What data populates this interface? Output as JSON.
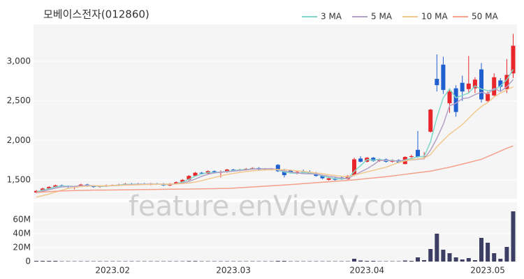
{
  "chart_data": [
    {
      "type": "candlestick",
      "title": "모베이스전자(012860)",
      "watermark": "feature.enViewV.com",
      "up_color": "#e8262b",
      "down_color": "#1f5fd0",
      "open": [
        1340,
        1360,
        1390,
        1410,
        1430,
        1420,
        1410,
        1420,
        1440,
        1420,
        1410,
        1420,
        1430,
        1435,
        1440,
        1450,
        1440,
        1450,
        1445,
        1450,
        1445,
        1430,
        1450,
        1470,
        1500,
        1550,
        1590,
        1580,
        1610,
        1590,
        1600,
        1630,
        1620,
        1630,
        1640,
        1650,
        1630,
        1640,
        1690,
        1610,
        1620,
        1590,
        1600,
        1600,
        1580,
        1550,
        1500,
        1520,
        1530,
        1510,
        1560,
        1770,
        1730,
        1780,
        1740,
        1760,
        1730,
        1750,
        1700,
        1790,
        1880,
        1790,
        2110,
        2780,
        2960,
        2470,
        2660,
        2730,
        2650,
        2660,
        2900,
        2500,
        2570,
        2760,
        2650,
        2850
      ],
      "high": [
        1370,
        1400,
        1420,
        1440,
        1440,
        1430,
        1420,
        1450,
        1450,
        1430,
        1430,
        1440,
        1440,
        1450,
        1460,
        1460,
        1460,
        1460,
        1460,
        1460,
        1460,
        1460,
        1480,
        1510,
        1560,
        1600,
        1600,
        1620,
        1620,
        1620,
        1640,
        1640,
        1640,
        1650,
        1660,
        1660,
        1650,
        1650,
        1700,
        1640,
        1630,
        1620,
        1630,
        1620,
        1600,
        1560,
        1530,
        1540,
        1540,
        1560,
        1780,
        1800,
        1790,
        1790,
        1770,
        1770,
        1760,
        1760,
        1800,
        1820,
        2120,
        1850,
        2400,
        3090,
        3060,
        2660,
        2700,
        2820,
        3070,
        2800,
        2980,
        2620,
        2850,
        2790,
        3030,
        3350
      ],
      "low": [
        1330,
        1350,
        1380,
        1400,
        1410,
        1400,
        1380,
        1410,
        1410,
        1400,
        1400,
        1410,
        1420,
        1420,
        1430,
        1430,
        1430,
        1440,
        1430,
        1440,
        1420,
        1420,
        1440,
        1460,
        1490,
        1540,
        1570,
        1570,
        1580,
        1530,
        1590,
        1610,
        1610,
        1620,
        1630,
        1620,
        1620,
        1620,
        1600,
        1530,
        1580,
        1570,
        1580,
        1570,
        1540,
        1510,
        1490,
        1490,
        1500,
        1500,
        1550,
        1720,
        1720,
        1730,
        1730,
        1720,
        1720,
        1710,
        1700,
        1770,
        1780,
        1760,
        2100,
        2620,
        2590,
        2350,
        2300,
        2500,
        2600,
        2600,
        2480,
        2480,
        2560,
        2620,
        2600,
        2790
      ],
      "close": [
        1360,
        1390,
        1410,
        1430,
        1420,
        1410,
        1420,
        1440,
        1420,
        1410,
        1420,
        1430,
        1435,
        1440,
        1450,
        1440,
        1450,
        1445,
        1450,
        1445,
        1430,
        1450,
        1470,
        1500,
        1550,
        1590,
        1580,
        1610,
        1590,
        1600,
        1630,
        1620,
        1630,
        1640,
        1650,
        1630,
        1640,
        1630,
        1610,
        1560,
        1590,
        1600,
        1590,
        1580,
        1550,
        1520,
        1520,
        1500,
        1510,
        1550,
        1760,
        1730,
        1780,
        1740,
        1760,
        1730,
        1750,
        1720,
        1790,
        1800,
        1790,
        1800,
        2390,
        2700,
        2640,
        2620,
        2360,
        2620,
        2720,
        2770,
        2520,
        2590,
        2800,
        2680,
        2830,
        3200
      ],
      "series": [
        {
          "name": "3 MA",
          "color": "#7fd8c8",
          "values": [
            1345,
            1370,
            1387,
            1410,
            1420,
            1420,
            1417,
            1423,
            1427,
            1423,
            1417,
            1420,
            1428,
            1435,
            1442,
            1443,
            1447,
            1445,
            1448,
            1447,
            1440,
            1442,
            1450,
            1473,
            1507,
            1547,
            1573,
            1593,
            1593,
            1600,
            1607,
            1617,
            1627,
            1630,
            1640,
            1640,
            1640,
            1633,
            1627,
            1600,
            1587,
            1583,
            1593,
            1590,
            1573,
            1550,
            1530,
            1513,
            1510,
            1520,
            1607,
            1680,
            1757,
            1750,
            1760,
            1743,
            1747,
            1733,
            1753,
            1770,
            1793,
            1797,
            1983,
            2290,
            2540,
            2653,
            2540,
            2570,
            2600,
            2690,
            2650,
            2630,
            2640,
            2690,
            2770,
            2900
          ]
        },
        {
          "name": "5 MA",
          "color": "#b3a0c8",
          "values": [
            1340,
            1355,
            1375,
            1395,
            1410,
            1414,
            1418,
            1424,
            1428,
            1426,
            1422,
            1424,
            1426,
            1430,
            1436,
            1440,
            1443,
            1445,
            1446,
            1446,
            1444,
            1444,
            1449,
            1460,
            1480,
            1510,
            1545,
            1570,
            1588,
            1596,
            1602,
            1610,
            1618,
            1626,
            1636,
            1638,
            1640,
            1642,
            1630,
            1614,
            1598,
            1588,
            1578,
            1576,
            1574,
            1560,
            1546,
            1534,
            1520,
            1520,
            1560,
            1600,
            1640,
            1690,
            1746,
            1750,
            1742,
            1740,
            1748,
            1752,
            1760,
            1768,
            1876,
            2028,
            2202,
            2440,
            2470,
            2530,
            2540,
            2580,
            2610,
            2590,
            2660,
            2620,
            2680,
            2770
          ]
        },
        {
          "name": "10 MA",
          "color": "#f3c88f",
          "values": [
            1280,
            1300,
            1320,
            1345,
            1370,
            1390,
            1405,
            1415,
            1420,
            1425,
            1425,
            1425,
            1428,
            1430,
            1432,
            1435,
            1438,
            1440,
            1442,
            1444,
            1445,
            1446,
            1448,
            1452,
            1460,
            1472,
            1490,
            1510,
            1530,
            1550,
            1568,
            1582,
            1595,
            1605,
            1615,
            1620,
            1625,
            1628,
            1630,
            1628,
            1622,
            1615,
            1608,
            1598,
            1588,
            1578,
            1565,
            1555,
            1545,
            1540,
            1560,
            1580,
            1600,
            1620,
            1640,
            1660,
            1690,
            1720,
            1740,
            1755,
            1765,
            1775,
            1820,
            1920,
            2000,
            2080,
            2140,
            2200,
            2280,
            2360,
            2430,
            2480,
            2550,
            2600,
            2640,
            2680
          ]
        },
        {
          "name": "50 MA",
          "color": "#f4a08a",
          "values": [
            1340,
            1345,
            1350,
            1355,
            1360,
            1362,
            1364,
            1366,
            1368,
            1370,
            1370,
            1371,
            1372,
            1373,
            1374,
            1375,
            1376,
            1377,
            1378,
            1379,
            1380,
            1381,
            1382,
            1383,
            1384,
            1385,
            1386,
            1387,
            1388,
            1390,
            1390,
            1395,
            1400,
            1405,
            1410,
            1415,
            1420,
            1425,
            1430,
            1435,
            1440,
            1446,
            1452,
            1458,
            1464,
            1470,
            1476,
            1482,
            1488,
            1494,
            1500,
            1508,
            1516,
            1524,
            1532,
            1540,
            1550,
            1560,
            1570,
            1580,
            1590,
            1600,
            1610,
            1627,
            1644,
            1660,
            1680,
            1700,
            1720,
            1740,
            1760,
            1795,
            1830,
            1865,
            1900,
            1930
          ]
        }
      ],
      "ylim": [
        1260,
        3470
      ],
      "yticks": [
        {
          "value": 1500,
          "label": "1,500"
        },
        {
          "value": 2000,
          "label": "2,000"
        },
        {
          "value": 2500,
          "label": "2,500"
        },
        {
          "value": 3000,
          "label": "3,000"
        }
      ]
    },
    {
      "type": "bar",
      "color": "#3c3f63",
      "categories": [
        null,
        null,
        null,
        null,
        null,
        null,
        null,
        null,
        null,
        null,
        null,
        null,
        "2023.02",
        null,
        null,
        null,
        null,
        null,
        null,
        null,
        null,
        null,
        null,
        null,
        null,
        null,
        null,
        null,
        null,
        null,
        null,
        "2023.03",
        null,
        null,
        null,
        null,
        null,
        null,
        null,
        null,
        null,
        null,
        null,
        null,
        null,
        null,
        null,
        null,
        null,
        null,
        null,
        null,
        "2023.04",
        null,
        null,
        null,
        null,
        null,
        null,
        null,
        null,
        null,
        null,
        null,
        null,
        null,
        null,
        null,
        null,
        null,
        null,
        "2023.05",
        null,
        null,
        null,
        null
      ],
      "values": [
        1000000,
        1000000,
        1000000,
        1000000,
        500000,
        500000,
        500000,
        500000,
        500000,
        500000,
        500000,
        500000,
        500000,
        500000,
        500000,
        500000,
        500000,
        500000,
        500000,
        500000,
        500000,
        500000,
        500000,
        500000,
        800000,
        800000,
        500000,
        500000,
        500000,
        500000,
        500000,
        500000,
        500000,
        500000,
        500000,
        500000,
        500000,
        500000,
        1000000,
        1000000,
        500000,
        500000,
        500000,
        500000,
        500000,
        500000,
        500000,
        500000,
        500000,
        500000,
        4000000,
        1500000,
        1000000,
        1000000,
        500000,
        500000,
        500000,
        500000,
        1500000,
        1000000,
        6000000,
        2000000,
        18000000,
        40000000,
        17000000,
        12000000,
        6000000,
        3000000,
        5000000,
        2000000,
        34000000,
        27000000,
        12000000,
        4000000,
        21000000,
        72000000
      ],
      "ylim": [
        0,
        85000000
      ],
      "yticks": [
        0,
        {
          "value": 20000000,
          "label": "20M"
        },
        {
          "value": 40000000,
          "label": "40M"
        },
        {
          "value": 60000000,
          "label": "60M"
        }
      ]
    }
  ]
}
